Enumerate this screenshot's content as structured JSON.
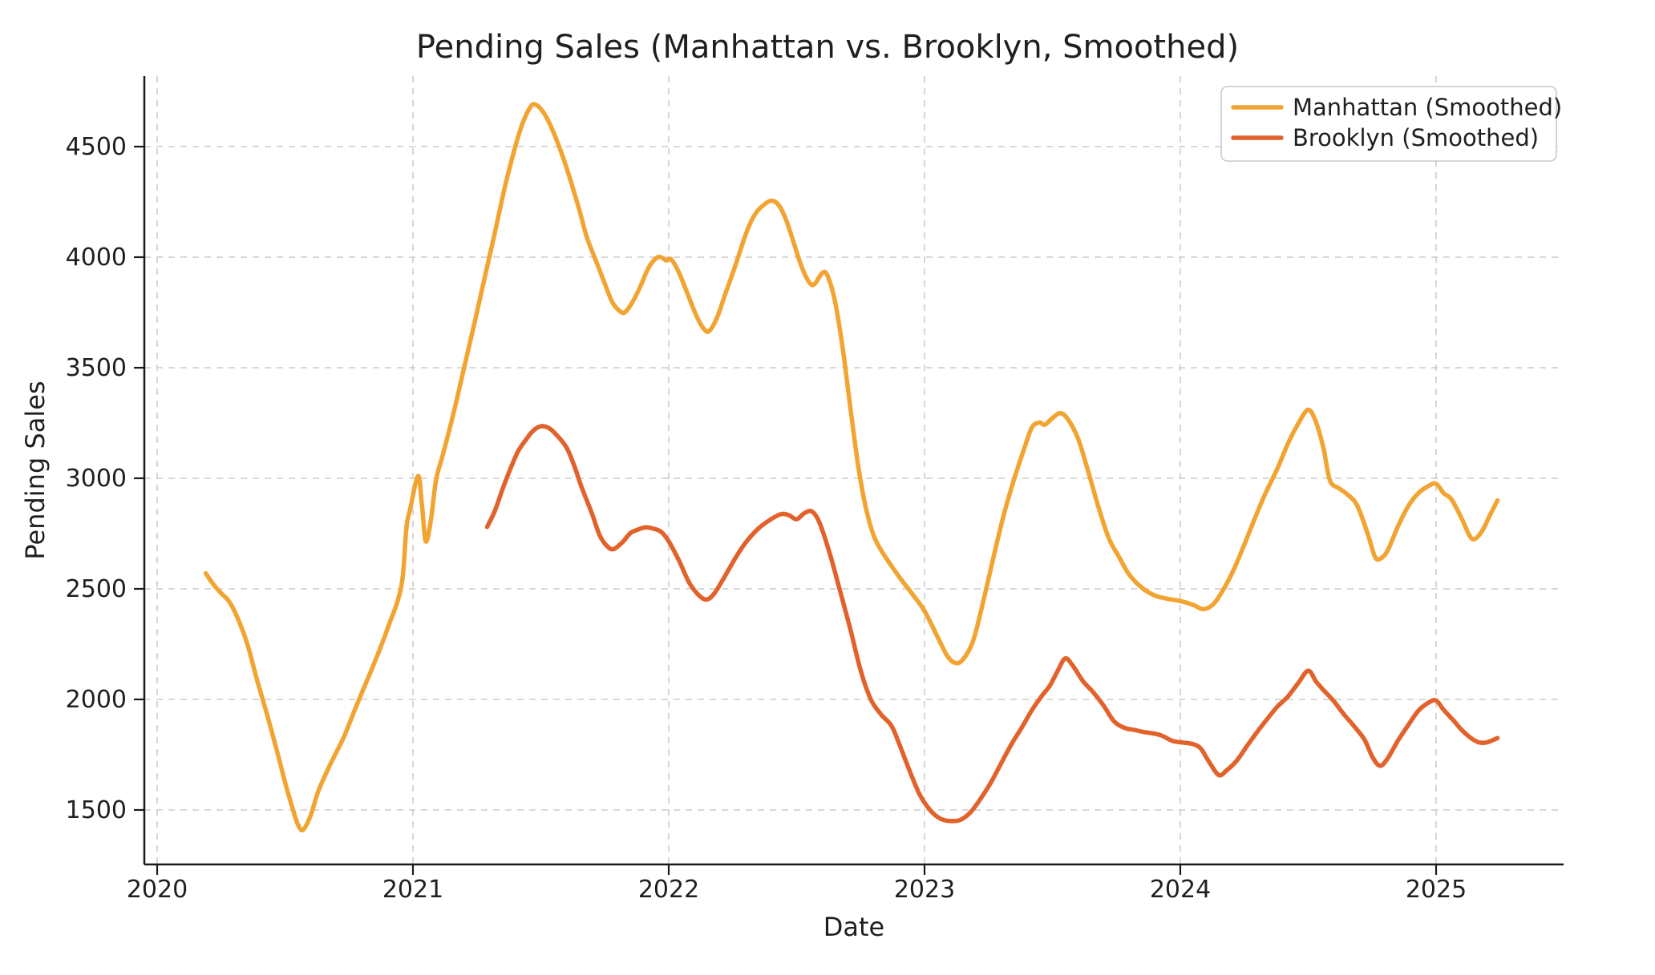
{
  "chart": {
    "title": "Pending Sales (Manhattan vs. Brooklyn, Smoothed)",
    "xlabel": "Date",
    "ylabel": "Pending Sales",
    "legend": [
      {
        "label": "Manhattan (Smoothed)",
        "color": "#F2A432"
      },
      {
        "label": "Brooklyn (Smoothed)",
        "color": "#E2622C"
      }
    ]
  },
  "colors": {
    "background": "#ffffff",
    "grid": "#cccccc",
    "spine": "#1a1a1a",
    "text": "#1f1f1f",
    "legend_border": "#c9c9c9",
    "manhattan": "#F2A432",
    "brooklyn": "#E2622C"
  },
  "chart_data": {
    "type": "line",
    "title": "Pending Sales (Manhattan vs. Brooklyn, Smoothed)",
    "xlabel": "Date",
    "ylabel": "Pending Sales",
    "xlim": [
      2019.95,
      2025.5
    ],
    "ylim": [
      1255,
      4820
    ],
    "x_ticks": [
      2020,
      2021,
      2022,
      2023,
      2024,
      2025
    ],
    "y_ticks": [
      1500,
      2000,
      2500,
      3000,
      3500,
      4000,
      4500
    ],
    "grid": true,
    "grid_style": "dashed",
    "legend_position": "upper-right",
    "series": [
      {
        "name": "Manhattan (Smoothed)",
        "color": "#F2A432",
        "points": [
          [
            2020.19,
            2570
          ],
          [
            2020.22,
            2520
          ],
          [
            2020.25,
            2480
          ],
          [
            2020.28,
            2445
          ],
          [
            2020.31,
            2380
          ],
          [
            2020.35,
            2260
          ],
          [
            2020.39,
            2090
          ],
          [
            2020.43,
            1930
          ],
          [
            2020.47,
            1760
          ],
          [
            2020.5,
            1625
          ],
          [
            2020.53,
            1505
          ],
          [
            2020.55,
            1435
          ],
          [
            2020.57,
            1410
          ],
          [
            2020.6,
            1475
          ],
          [
            2020.63,
            1585
          ],
          [
            2020.67,
            1690
          ],
          [
            2020.7,
            1760
          ],
          [
            2020.73,
            1830
          ],
          [
            2020.77,
            1945
          ],
          [
            2020.8,
            2030
          ],
          [
            2020.84,
            2140
          ],
          [
            2020.88,
            2255
          ],
          [
            2020.91,
            2350
          ],
          [
            2020.94,
            2445
          ],
          [
            2020.96,
            2555
          ],
          [
            2020.975,
            2780
          ],
          [
            2020.99,
            2865
          ],
          [
            2021.02,
            3010
          ],
          [
            2021.035,
            2880
          ],
          [
            2021.05,
            2715
          ],
          [
            2021.07,
            2810
          ],
          [
            2021.09,
            2990
          ],
          [
            2021.12,
            3120
          ],
          [
            2021.16,
            3300
          ],
          [
            2021.2,
            3500
          ],
          [
            2021.24,
            3700
          ],
          [
            2021.28,
            3905
          ],
          [
            2021.32,
            4110
          ],
          [
            2021.36,
            4320
          ],
          [
            2021.4,
            4500
          ],
          [
            2021.43,
            4610
          ],
          [
            2021.46,
            4680
          ],
          [
            2021.48,
            4690
          ],
          [
            2021.51,
            4655
          ],
          [
            2021.54,
            4590
          ],
          [
            2021.57,
            4505
          ],
          [
            2021.61,
            4370
          ],
          [
            2021.65,
            4215
          ],
          [
            2021.68,
            4090
          ],
          [
            2021.72,
            3970
          ],
          [
            2021.75,
            3880
          ],
          [
            2021.78,
            3795
          ],
          [
            2021.81,
            3755
          ],
          [
            2021.83,
            3752
          ],
          [
            2021.86,
            3800
          ],
          [
            2021.89,
            3870
          ],
          [
            2021.92,
            3950
          ],
          [
            2021.95,
            3995
          ],
          [
            2021.97,
            4000
          ],
          [
            2021.99,
            3985
          ],
          [
            2022.01,
            3990
          ],
          [
            2022.04,
            3930
          ],
          [
            2022.07,
            3845
          ],
          [
            2022.11,
            3730
          ],
          [
            2022.14,
            3672
          ],
          [
            2022.16,
            3668
          ],
          [
            2022.19,
            3730
          ],
          [
            2022.22,
            3830
          ],
          [
            2022.26,
            3960
          ],
          [
            2022.3,
            4100
          ],
          [
            2022.33,
            4180
          ],
          [
            2022.36,
            4225
          ],
          [
            2022.4,
            4255
          ],
          [
            2022.43,
            4235
          ],
          [
            2022.46,
            4165
          ],
          [
            2022.49,
            4060
          ],
          [
            2022.52,
            3955
          ],
          [
            2022.55,
            3885
          ],
          [
            2022.57,
            3878
          ],
          [
            2022.6,
            3928
          ],
          [
            2022.62,
            3918
          ],
          [
            2022.65,
            3800
          ],
          [
            2022.68,
            3590
          ],
          [
            2022.71,
            3320
          ],
          [
            2022.74,
            3060
          ],
          [
            2022.77,
            2870
          ],
          [
            2022.8,
            2745
          ],
          [
            2022.83,
            2675
          ],
          [
            2022.87,
            2605
          ],
          [
            2022.91,
            2540
          ],
          [
            2022.96,
            2465
          ],
          [
            2023.0,
            2400
          ],
          [
            2023.05,
            2285
          ],
          [
            2023.09,
            2195
          ],
          [
            2023.12,
            2165
          ],
          [
            2023.15,
            2180
          ],
          [
            2023.19,
            2265
          ],
          [
            2023.23,
            2445
          ],
          [
            2023.27,
            2645
          ],
          [
            2023.31,
            2835
          ],
          [
            2023.35,
            2995
          ],
          [
            2023.39,
            3135
          ],
          [
            2023.42,
            3230
          ],
          [
            2023.45,
            3252
          ],
          [
            2023.47,
            3242
          ],
          [
            2023.5,
            3272
          ],
          [
            2023.53,
            3295
          ],
          [
            2023.56,
            3268
          ],
          [
            2023.6,
            3180
          ],
          [
            2023.64,
            3030
          ],
          [
            2023.68,
            2870
          ],
          [
            2023.72,
            2730
          ],
          [
            2023.76,
            2645
          ],
          [
            2023.8,
            2565
          ],
          [
            2023.85,
            2505
          ],
          [
            2023.9,
            2470
          ],
          [
            2023.95,
            2455
          ],
          [
            2024.0,
            2445
          ],
          [
            2024.05,
            2428
          ],
          [
            2024.09,
            2408
          ],
          [
            2024.13,
            2432
          ],
          [
            2024.17,
            2500
          ],
          [
            2024.21,
            2590
          ],
          [
            2024.25,
            2700
          ],
          [
            2024.29,
            2815
          ],
          [
            2024.33,
            2925
          ],
          [
            2024.38,
            3045
          ],
          [
            2024.42,
            3155
          ],
          [
            2024.46,
            3245
          ],
          [
            2024.5,
            3310
          ],
          [
            2024.53,
            3255
          ],
          [
            2024.56,
            3135
          ],
          [
            2024.585,
            2990
          ],
          [
            2024.62,
            2955
          ],
          [
            2024.65,
            2930
          ],
          [
            2024.69,
            2880
          ],
          [
            2024.73,
            2758
          ],
          [
            2024.76,
            2648
          ],
          [
            2024.78,
            2635
          ],
          [
            2024.81,
            2672
          ],
          [
            2024.85,
            2780
          ],
          [
            2024.89,
            2872
          ],
          [
            2024.93,
            2932
          ],
          [
            2024.97,
            2965
          ],
          [
            2025.0,
            2975
          ],
          [
            2025.03,
            2932
          ],
          [
            2025.06,
            2905
          ],
          [
            2025.1,
            2818
          ],
          [
            2025.13,
            2742
          ],
          [
            2025.15,
            2725
          ],
          [
            2025.18,
            2762
          ],
          [
            2025.21,
            2832
          ],
          [
            2025.24,
            2900
          ]
        ]
      },
      {
        "name": "Brooklyn (Smoothed)",
        "color": "#E2622C",
        "points": [
          [
            2021.29,
            2780
          ],
          [
            2021.32,
            2852
          ],
          [
            2021.35,
            2950
          ],
          [
            2021.38,
            3040
          ],
          [
            2021.41,
            3120
          ],
          [
            2021.44,
            3172
          ],
          [
            2021.47,
            3215
          ],
          [
            2021.5,
            3235
          ],
          [
            2021.53,
            3228
          ],
          [
            2021.56,
            3198
          ],
          [
            2021.6,
            3140
          ],
          [
            2021.63,
            3058
          ],
          [
            2021.66,
            2958
          ],
          [
            2021.7,
            2840
          ],
          [
            2021.73,
            2742
          ],
          [
            2021.76,
            2692
          ],
          [
            2021.785,
            2680
          ],
          [
            2021.82,
            2712
          ],
          [
            2021.85,
            2752
          ],
          [
            2021.88,
            2768
          ],
          [
            2021.91,
            2778
          ],
          [
            2021.94,
            2772
          ],
          [
            2021.97,
            2758
          ],
          [
            2022.0,
            2715
          ],
          [
            2022.04,
            2628
          ],
          [
            2022.08,
            2528
          ],
          [
            2022.12,
            2468
          ],
          [
            2022.15,
            2452
          ],
          [
            2022.18,
            2482
          ],
          [
            2022.22,
            2558
          ],
          [
            2022.26,
            2638
          ],
          [
            2022.3,
            2708
          ],
          [
            2022.35,
            2772
          ],
          [
            2022.4,
            2815
          ],
          [
            2022.44,
            2838
          ],
          [
            2022.47,
            2833
          ],
          [
            2022.5,
            2815
          ],
          [
            2022.53,
            2842
          ],
          [
            2022.56,
            2850
          ],
          [
            2022.59,
            2798
          ],
          [
            2022.63,
            2658
          ],
          [
            2022.67,
            2490
          ],
          [
            2022.71,
            2318
          ],
          [
            2022.75,
            2132
          ],
          [
            2022.79,
            2000
          ],
          [
            2022.83,
            1932
          ],
          [
            2022.87,
            1882
          ],
          [
            2022.9,
            1802
          ],
          [
            2022.94,
            1682
          ],
          [
            2022.98,
            1572
          ],
          [
            2023.02,
            1502
          ],
          [
            2023.06,
            1462
          ],
          [
            2023.1,
            1450
          ],
          [
            2023.14,
            1455
          ],
          [
            2023.18,
            1490
          ],
          [
            2023.22,
            1552
          ],
          [
            2023.26,
            1625
          ],
          [
            2023.3,
            1712
          ],
          [
            2023.34,
            1798
          ],
          [
            2023.38,
            1872
          ],
          [
            2023.42,
            1952
          ],
          [
            2023.46,
            2018
          ],
          [
            2023.49,
            2062
          ],
          [
            2023.52,
            2128
          ],
          [
            2023.55,
            2185
          ],
          [
            2023.58,
            2152
          ],
          [
            2023.62,
            2082
          ],
          [
            2023.66,
            2032
          ],
          [
            2023.7,
            1972
          ],
          [
            2023.74,
            1902
          ],
          [
            2023.78,
            1872
          ],
          [
            2023.82,
            1862
          ],
          [
            2023.86,
            1852
          ],
          [
            2023.9,
            1845
          ],
          [
            2023.93,
            1835
          ],
          [
            2023.97,
            1812
          ],
          [
            2024.01,
            1805
          ],
          [
            2024.05,
            1798
          ],
          [
            2024.08,
            1778
          ],
          [
            2024.11,
            1722
          ],
          [
            2024.15,
            1658
          ],
          [
            2024.18,
            1678
          ],
          [
            2024.22,
            1722
          ],
          [
            2024.26,
            1788
          ],
          [
            2024.3,
            1852
          ],
          [
            2024.34,
            1912
          ],
          [
            2024.38,
            1968
          ],
          [
            2024.42,
            2012
          ],
          [
            2024.46,
            2072
          ],
          [
            2024.5,
            2130
          ],
          [
            2024.53,
            2082
          ],
          [
            2024.56,
            2042
          ],
          [
            2024.6,
            1992
          ],
          [
            2024.64,
            1932
          ],
          [
            2024.68,
            1878
          ],
          [
            2024.72,
            1818
          ],
          [
            2024.75,
            1742
          ],
          [
            2024.78,
            1700
          ],
          [
            2024.81,
            1732
          ],
          [
            2024.85,
            1812
          ],
          [
            2024.89,
            1882
          ],
          [
            2024.93,
            1948
          ],
          [
            2024.97,
            1985
          ],
          [
            2025.0,
            1995
          ],
          [
            2025.03,
            1952
          ],
          [
            2025.07,
            1902
          ],
          [
            2025.1,
            1862
          ],
          [
            2025.14,
            1822
          ],
          [
            2025.17,
            1805
          ],
          [
            2025.2,
            1806
          ],
          [
            2025.24,
            1825
          ]
        ]
      }
    ]
  }
}
